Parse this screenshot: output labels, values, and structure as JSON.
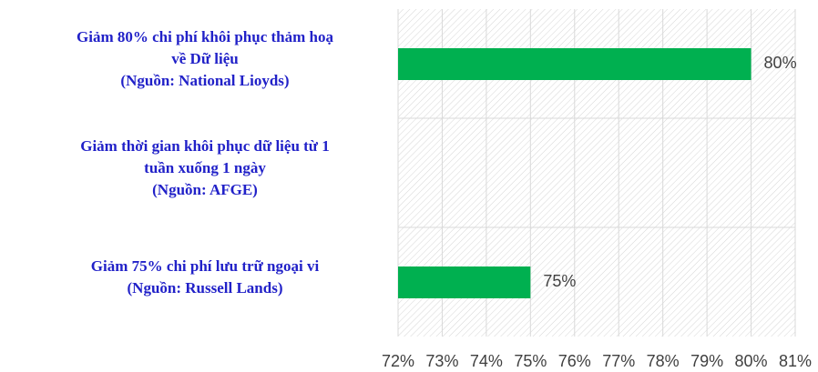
{
  "chart_data": {
    "type": "barh",
    "categories": [
      "Giảm 80% chi phí khôi phục thảm hoạ\nvề Dữ liệu\n(Nguồn: National Lioyds)",
      "Giảm thời gian khôi phục dữ liệu từ 1\ntuần xuống 1 ngày\n(Nguồn: AFGE)",
      "Giảm 75% chi phí lưu trữ ngoại vi\n(Nguồn: Russell Lands)"
    ],
    "values": [
      80,
      null,
      75
    ],
    "value_labels": [
      "80%",
      null,
      "75%"
    ],
    "color": "#00b050",
    "xlim": [
      72,
      81
    ],
    "xticks": [
      {
        "value": 72,
        "label": "72%"
      },
      {
        "value": 73,
        "label": "73%"
      },
      {
        "value": 74,
        "label": "74%"
      },
      {
        "value": 75,
        "label": "75%"
      },
      {
        "value": 76,
        "label": "76%"
      },
      {
        "value": 77,
        "label": "77%"
      },
      {
        "value": 78,
        "label": "78%"
      },
      {
        "value": 79,
        "label": "79%"
      },
      {
        "value": 80,
        "label": "80%"
      },
      {
        "value": 81,
        "label": "81%"
      }
    ],
    "grid": true
  }
}
